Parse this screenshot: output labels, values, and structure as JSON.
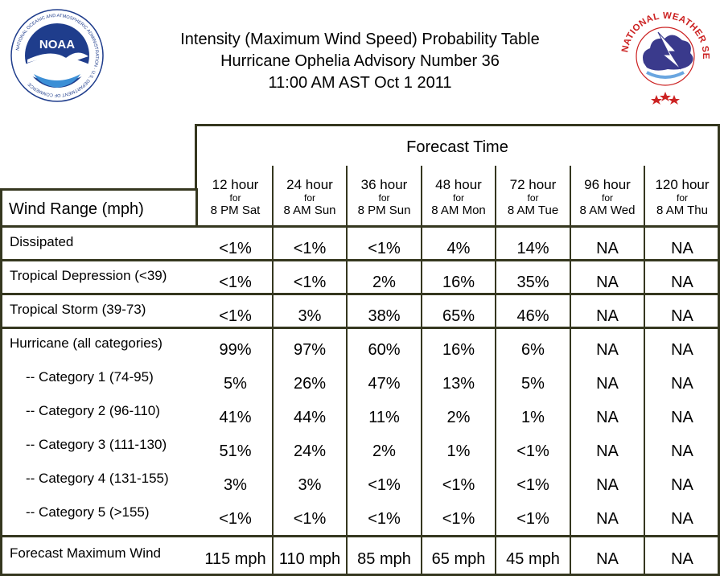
{
  "header": {
    "title_line1": "Intensity (Maximum Wind Speed) Probability Table",
    "title_line2": "Hurricane Ophelia Advisory Number 36",
    "title_line3": "11:00 AM AST Oct 1 2011",
    "noaa_logo": {
      "text": "NOAA",
      "ring_text": "NATIONAL OCEANIC AND ATMOSPHERIC ADMINISTRATION · U.S. DEPARTMENT OF COMMERCE"
    },
    "nws_logo": {
      "ring_text": "NATIONAL WEATHER SERVICE"
    },
    "colors": {
      "noaa_blue": "#1f3d8c",
      "nws_red": "#cc2222",
      "nws_cloud": "#3a3a8c"
    }
  },
  "table": {
    "forecast_time_label": "Forecast Time",
    "wind_range_label": "Wind Range (mph)",
    "columns": [
      {
        "hour": "12 hour",
        "for": "for",
        "date": "8 PM Sat"
      },
      {
        "hour": "24 hour",
        "for": "for",
        "date": "8 AM Sun"
      },
      {
        "hour": "36 hour",
        "for": "for",
        "date": "8 PM Sun"
      },
      {
        "hour": "48 hour",
        "for": "for",
        "date": "8 AM Mon"
      },
      {
        "hour": "72 hour",
        "for": "for",
        "date": "8 AM Tue"
      },
      {
        "hour": "96 hour",
        "for": "for",
        "date": "8 AM Wed"
      },
      {
        "hour": "120 hour",
        "for": "for",
        "date": "8 AM Thu"
      }
    ],
    "rows": [
      {
        "label": "Dissipated",
        "values": [
          "<1%",
          "<1%",
          "<1%",
          "4%",
          "14%",
          "NA",
          "NA"
        ]
      },
      {
        "label": "Tropical Depression (<39)",
        "values": [
          "<1%",
          "<1%",
          "2%",
          "16%",
          "35%",
          "NA",
          "NA"
        ]
      },
      {
        "label": "Tropical Storm (39-73)",
        "values": [
          "<1%",
          "3%",
          "38%",
          "65%",
          "46%",
          "NA",
          "NA"
        ]
      },
      {
        "label": "Hurricane (all categories)",
        "values": [
          "99%",
          "97%",
          "60%",
          "16%",
          "6%",
          "NA",
          "NA"
        ]
      },
      {
        "label": "-- Category 1 (74-95)",
        "values": [
          "5%",
          "26%",
          "47%",
          "13%",
          "5%",
          "NA",
          "NA"
        ]
      },
      {
        "label": "-- Category 2 (96-110)",
        "values": [
          "41%",
          "44%",
          "11%",
          "2%",
          "1%",
          "NA",
          "NA"
        ]
      },
      {
        "label": "-- Category 3 (111-130)",
        "values": [
          "51%",
          "24%",
          "2%",
          "1%",
          "<1%",
          "NA",
          "NA"
        ]
      },
      {
        "label": "-- Category 4 (131-155)",
        "values": [
          "3%",
          "3%",
          "<1%",
          "<1%",
          "<1%",
          "NA",
          "NA"
        ]
      },
      {
        "label": "-- Category 5 (>155)",
        "values": [
          "<1%",
          "<1%",
          "<1%",
          "<1%",
          "<1%",
          "NA",
          "NA"
        ]
      }
    ],
    "forecast_max_wind": {
      "label": "Forecast Maximum Wind",
      "values": [
        "115 mph",
        "110 mph",
        "85 mph",
        "65 mph",
        "45 mph",
        "NA",
        "NA"
      ]
    }
  }
}
